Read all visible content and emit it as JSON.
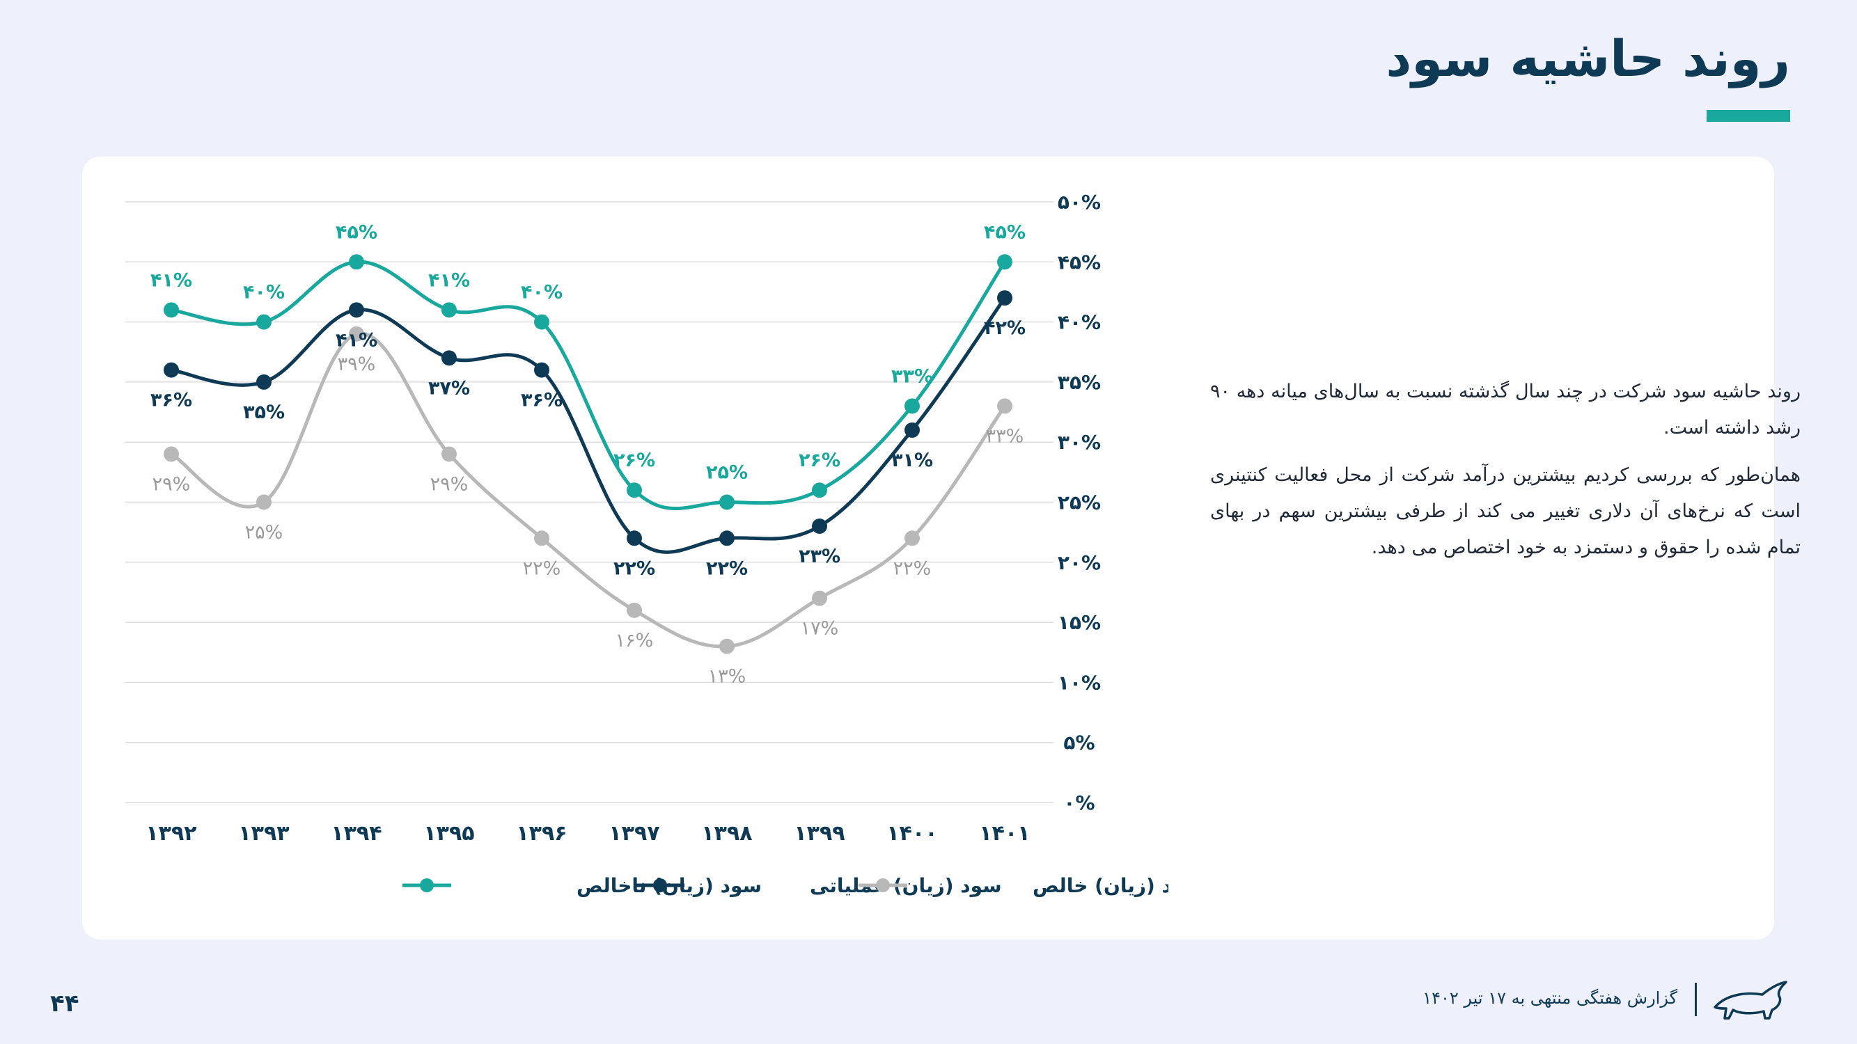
{
  "header": {
    "title": "روند حاشیه سود"
  },
  "description": {
    "paragraphs": [
      "روند حاشیه سود شرکت در چند سال گذشته نسبت به سال‌های میانه دهه ۹۰ رشد داشته است.",
      "همان‌طور که بررسی کردیم بیشترین درآمد شرکت از محل فعالیت کنتینری است که نرخ‌های آن دلاری تغییر می کند از طرفی بیشترین سهم در بهای تمام شده را حقوق و دستمزد به خود اختصاص می دهد."
    ]
  },
  "footer": {
    "page_number": "۴۴",
    "report_title": "گزارش هفتگی منتهی به ۱۷ تیر ۱۴۰۲"
  },
  "chart_data": {
    "type": "line",
    "categories": [
      "۱۳۹۲",
      "۱۳۹۳",
      "۱۳۹۴",
      "۱۳۹۵",
      "۱۳۹۶",
      "۱۳۹۷",
      "۱۳۹۸",
      "۱۳۹۹",
      "۱۴۰۰",
      "۱۴۰۱"
    ],
    "ylim": [
      0,
      50
    ],
    "y_tick_labels": [
      "۰%",
      "۵%",
      "۱۰%",
      "۱۵%",
      "۲۰%",
      "۲۵%",
      "۳۰%",
      "۳۵%",
      "۴۰%",
      "۴۵%",
      "۵۰%"
    ],
    "y_axis_side": "right",
    "grid": true,
    "legend_position": "bottom",
    "series": [
      {
        "name": "سود (زیان) ناخالص",
        "color": "#19a89d",
        "values": [
          41,
          40,
          45,
          41,
          40,
          26,
          25,
          26,
          33,
          45
        ],
        "labels": [
          "۴۱%",
          "۴۰%",
          "۴۵%",
          "۴۱%",
          "۴۰%",
          "۲۶%",
          "۲۵%",
          "۲۶%",
          "۳۳%",
          "۴۵%"
        ],
        "label_position": "above"
      },
      {
        "name": "سود (زیان) عملیاتی",
        "color": "#0f3a56",
        "values": [
          36,
          35,
          41,
          37,
          36,
          22,
          22,
          23,
          31,
          42
        ],
        "labels": [
          "۳۶%",
          "۳۵%",
          "۴۱%",
          "۳۷%",
          "۳۶%",
          "۲۲%",
          "۲۲%",
          "۲۳%",
          "۳۱%",
          "۴۲%"
        ],
        "label_position": "below"
      },
      {
        "name": "سود (زیان) خالص",
        "color": "#b8b8b8",
        "values": [
          29,
          25,
          39,
          29,
          22,
          16,
          13,
          17,
          22,
          33
        ],
        "labels": [
          "۲۹%",
          "۲۵%",
          "۳۹%",
          "۲۹%",
          "۲۲%",
          "۱۶%",
          "۱۳%",
          "۱۷%",
          "۲۲%",
          "۳۳%"
        ],
        "label_position": "below"
      }
    ]
  }
}
